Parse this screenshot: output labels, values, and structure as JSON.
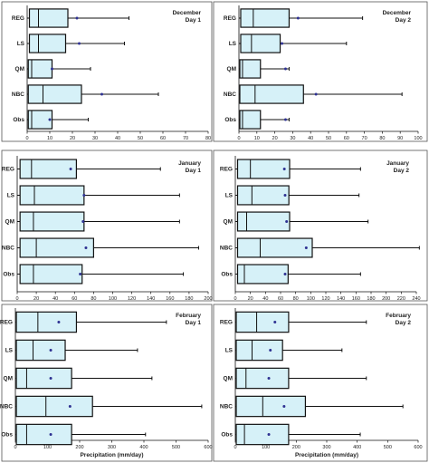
{
  "chart_data": [
    {
      "type": "boxplot",
      "title": "December\nDay 1",
      "xlabel": "",
      "xlim": [
        0,
        80
      ],
      "xticks": [
        0,
        10,
        20,
        30,
        40,
        50,
        60,
        70,
        80
      ],
      "series": [
        {
          "name": "REG",
          "min": 0,
          "q1": 1,
          "median": 5,
          "q3": 18,
          "max": 45,
          "mean": 22
        },
        {
          "name": "LS",
          "min": 0,
          "q1": 1,
          "median": 5,
          "q3": 17,
          "max": 43,
          "mean": 23
        },
        {
          "name": "QM",
          "min": 0,
          "q1": 0.5,
          "median": 2,
          "q3": 11,
          "max": 28,
          "mean": 11
        },
        {
          "name": "NBC",
          "min": 0,
          "q1": 0.5,
          "median": 7,
          "q3": 24,
          "max": 58,
          "mean": 33
        },
        {
          "name": "Obs",
          "min": 0,
          "q1": 0.5,
          "median": 2,
          "q3": 11,
          "max": 27,
          "mean": 10
        }
      ]
    },
    {
      "type": "boxplot",
      "title": "December\nDay 2",
      "xlabel": "",
      "xlim": [
        0,
        100
      ],
      "xticks": [
        0,
        10,
        20,
        30,
        40,
        50,
        60,
        70,
        80,
        90,
        100
      ],
      "series": [
        {
          "name": "REG",
          "min": 0,
          "q1": 1,
          "median": 8,
          "q3": 28,
          "max": 69,
          "mean": 33
        },
        {
          "name": "LS",
          "min": 0,
          "q1": 1,
          "median": 7,
          "q3": 23,
          "max": 60,
          "mean": 24
        },
        {
          "name": "QM",
          "min": 0,
          "q1": 0.5,
          "median": 2,
          "q3": 12,
          "max": 28,
          "mean": 26
        },
        {
          "name": "NBC",
          "min": 0,
          "q1": 0.5,
          "median": 9,
          "q3": 36,
          "max": 91,
          "mean": 43
        },
        {
          "name": "Obs",
          "min": 0,
          "q1": 0.5,
          "median": 2,
          "q3": 12,
          "max": 28,
          "mean": 26
        }
      ]
    },
    {
      "type": "boxplot",
      "title": "January\nDay 1",
      "xlabel": "",
      "xlim": [
        0,
        200
      ],
      "xticks": [
        0,
        20,
        40,
        60,
        80,
        100,
        120,
        140,
        160,
        180,
        200
      ],
      "series": [
        {
          "name": "REG",
          "min": 0,
          "q1": 3,
          "median": 15,
          "q3": 62,
          "max": 150,
          "mean": 56
        },
        {
          "name": "LS",
          "min": 0,
          "q1": 3,
          "median": 18,
          "q3": 70,
          "max": 170,
          "mean": 70
        },
        {
          "name": "QM",
          "min": 0,
          "q1": 3,
          "median": 17,
          "q3": 70,
          "max": 170,
          "mean": 69
        },
        {
          "name": "NBC",
          "min": 0,
          "q1": 3,
          "median": 20,
          "q3": 80,
          "max": 190,
          "mean": 72
        },
        {
          "name": "Obs",
          "min": 0,
          "q1": 3,
          "median": 17,
          "q3": 68,
          "max": 174,
          "mean": 66
        }
      ]
    },
    {
      "type": "boxplot",
      "title": "January\nDay 2",
      "xlabel": "",
      "xlim": [
        0,
        240
      ],
      "xticks": [
        0,
        20,
        40,
        60,
        80,
        100,
        120,
        140,
        160,
        180,
        200,
        220,
        240
      ],
      "series": [
        {
          "name": "REG",
          "min": 0,
          "q1": 3,
          "median": 20,
          "q3": 72,
          "max": 166,
          "mean": 65
        },
        {
          "name": "LS",
          "min": 0,
          "q1": 3,
          "median": 22,
          "q3": 71,
          "max": 164,
          "mean": 66
        },
        {
          "name": "QM",
          "min": 0,
          "q1": 3,
          "median": 15,
          "q3": 72,
          "max": 176,
          "mean": 68
        },
        {
          "name": "NBC",
          "min": 0,
          "q1": 3,
          "median": 33,
          "q3": 102,
          "max": 244,
          "mean": 94
        },
        {
          "name": "Obs",
          "min": 0,
          "q1": 3,
          "median": 12,
          "q3": 70,
          "max": 166,
          "mean": 66
        }
      ]
    },
    {
      "type": "boxplot",
      "title": "February\nDay 1",
      "xlabel": "Precipitation (mm/day)",
      "xlim": [
        0,
        600
      ],
      "xticks": [
        0,
        100,
        200,
        300,
        400,
        500,
        600
      ],
      "series": [
        {
          "name": "REG",
          "min": 0,
          "q1": 3,
          "median": 70,
          "q3": 190,
          "max": 470,
          "mean": 135
        },
        {
          "name": "LS",
          "min": 0,
          "q1": 3,
          "median": 55,
          "q3": 155,
          "max": 380,
          "mean": 110
        },
        {
          "name": "QM",
          "min": 0,
          "q1": 3,
          "median": 35,
          "q3": 175,
          "max": 425,
          "mean": 110
        },
        {
          "name": "NBC",
          "min": 0,
          "q1": 3,
          "median": 95,
          "q3": 240,
          "max": 580,
          "mean": 170
        },
        {
          "name": "Obs",
          "min": 0,
          "q1": 3,
          "median": 35,
          "q3": 175,
          "max": 405,
          "mean": 110
        }
      ]
    },
    {
      "type": "boxplot",
      "title": "February\nDay 2",
      "xlabel": "Precipitation (mm/day)",
      "xlim": [
        0,
        600
      ],
      "xticks": [
        0,
        100,
        200,
        300,
        400,
        500,
        600
      ],
      "series": [
        {
          "name": "REG",
          "min": 0,
          "q1": 3,
          "median": 70,
          "q3": 175,
          "max": 430,
          "mean": 130
        },
        {
          "name": "LS",
          "min": 0,
          "q1": 3,
          "median": 55,
          "q3": 155,
          "max": 350,
          "mean": 115
        },
        {
          "name": "QM",
          "min": 0,
          "q1": 3,
          "median": 35,
          "q3": 175,
          "max": 430,
          "mean": 110
        },
        {
          "name": "NBC",
          "min": 0,
          "q1": 3,
          "median": 90,
          "q3": 230,
          "max": 550,
          "mean": 160
        },
        {
          "name": "Obs",
          "min": 0,
          "q1": 3,
          "median": 30,
          "q3": 175,
          "max": 410,
          "mean": 110
        }
      ]
    }
  ]
}
